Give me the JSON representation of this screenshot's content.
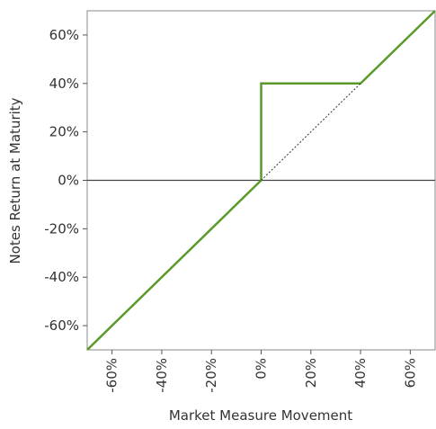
{
  "chart_data": {
    "type": "line",
    "title": "",
    "xlabel": "Market Measure Movement",
    "ylabel": "Notes Return at Maturity",
    "xlim": [
      -70,
      70
    ],
    "ylim": [
      -70,
      70
    ],
    "x_ticks": [
      -60,
      -40,
      -20,
      0,
      20,
      40,
      60
    ],
    "y_ticks": [
      60,
      40,
      20,
      0,
      -20,
      -40,
      -60
    ],
    "x_tick_labels": [
      "-60%",
      "-40%",
      "-20%",
      "0%",
      "20%",
      "40%",
      "60%"
    ],
    "y_tick_labels": [
      "60%",
      "40%",
      "20%",
      "0%",
      "-20%",
      "-40%",
      "-60%"
    ],
    "grid": false,
    "series": [
      {
        "points": [
          [
            -70,
            -70
          ],
          [
            0,
            0
          ],
          [
            0,
            40
          ],
          [
            40,
            40
          ],
          [
            70,
            70
          ]
        ],
        "color": "#5a9a2a",
        "style": "solid"
      },
      {
        "points": [
          [
            0,
            0
          ],
          [
            40,
            40
          ]
        ],
        "color": "#333333",
        "style": "dotted"
      }
    ],
    "reference_lines": [
      {
        "axis": "y",
        "value": 0,
        "color": "#444444"
      }
    ]
  }
}
